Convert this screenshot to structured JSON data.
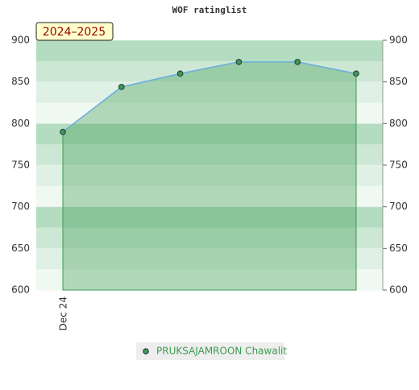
{
  "chart_data": {
    "type": "area",
    "title": "WOF ratinglist",
    "annotation": "2024–2025",
    "categories": [
      "Dec 24",
      null,
      null,
      null,
      null,
      null
    ],
    "series": [
      {
        "name": "PRUKSAJAMROON Chawalit",
        "color": "#3d9a50",
        "line_color": "#6aaee0",
        "values": [
          790,
          844,
          860,
          874,
          874,
          860
        ]
      }
    ],
    "ylim": [
      600,
      900
    ],
    "yticks": [
      600,
      650,
      700,
      750,
      800,
      850,
      900
    ],
    "grid": true,
    "legend": "bottom"
  }
}
